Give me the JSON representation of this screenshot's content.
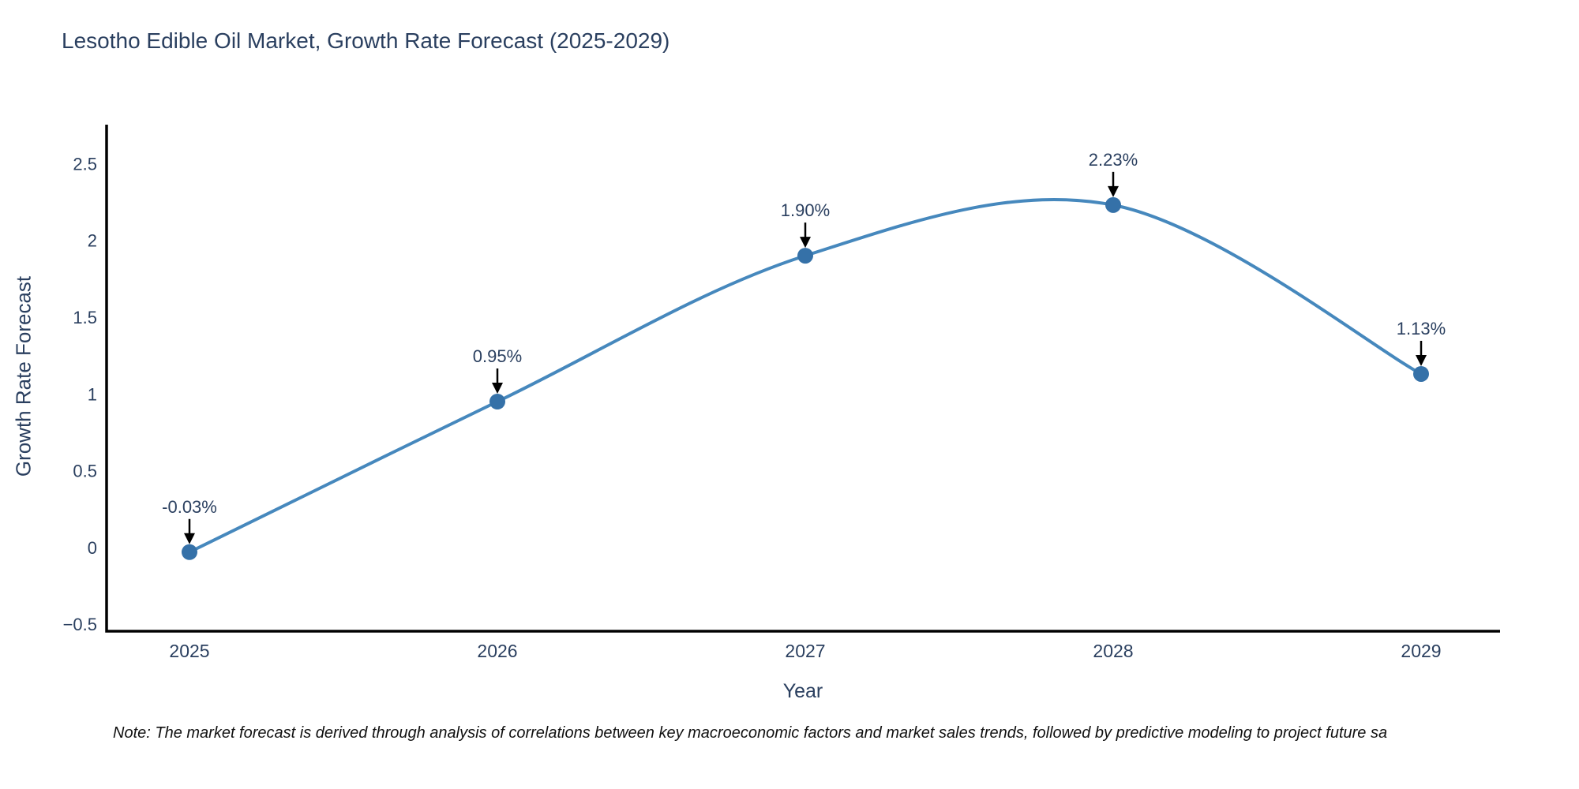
{
  "chart": {
    "title": "Lesotho Edible Oil Market, Growth Rate Forecast (2025-2029)",
    "xlabel": "Year",
    "ylabel": "Growth Rate Forecast",
    "note": "Note: The market forecast is derived through analysis of correlations between key macroeconomic factors and market sales trends, followed by predictive modeling to project future sa"
  },
  "chart_data": {
    "type": "line",
    "title": "Lesotho Edible Oil Market, Growth Rate Forecast (2025-2029)",
    "xlabel": "Year",
    "ylabel": "Growth Rate Forecast",
    "x": [
      2025,
      2026,
      2027,
      2028,
      2029
    ],
    "values": [
      -0.03,
      0.95,
      1.9,
      2.23,
      1.13
    ],
    "point_labels": [
      "-0.03%",
      "0.95%",
      "1.90%",
      "2.23%",
      "1.13%"
    ],
    "xtick_labels": [
      "2025",
      "2026",
      "2027",
      "2028",
      "2029"
    ],
    "ytick_values": [
      -0.5,
      0,
      0.5,
      1,
      1.5,
      2,
      2.5
    ],
    "ytick_labels": [
      "−0.5",
      "0",
      "0.5",
      "1",
      "1.5",
      "2",
      "2.5"
    ],
    "ylim": [
      -0.5,
      2.5
    ],
    "grid": false,
    "legend": false,
    "line_shape": "spline",
    "line_color": "#4688bd",
    "marker_color": "#3571a8",
    "axis_color": "#000000",
    "annotation_arrow_color": "#000000",
    "annotation_text_color": "#2a3f5f",
    "tick_label_color": "#2a3f5f"
  }
}
